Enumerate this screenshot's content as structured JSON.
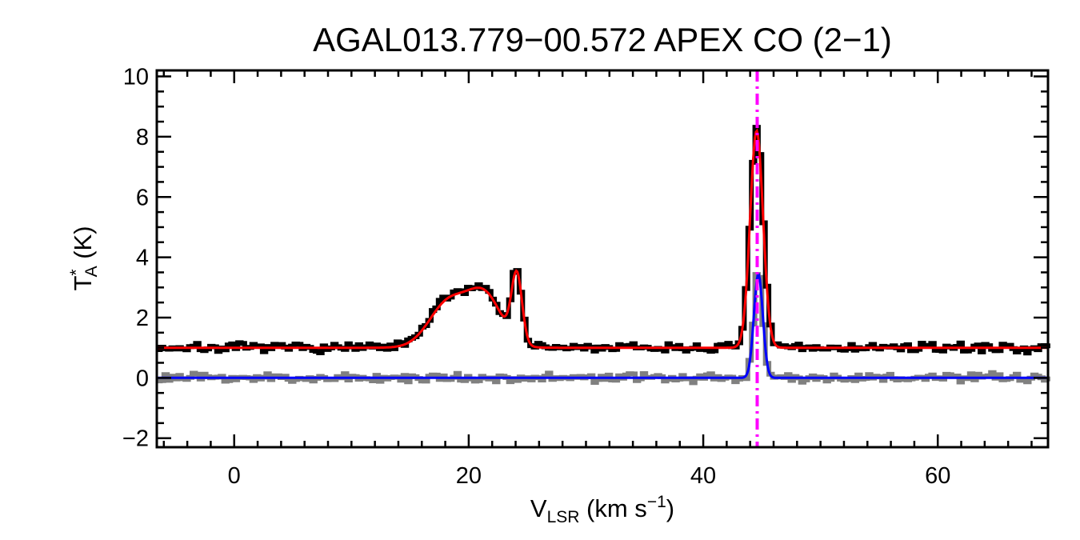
{
  "chart_data": {
    "type": "line",
    "title": "AGAL013.779−00.572  APEX CO (2−1)",
    "xlabel": {
      "main": "V",
      "sub": "LSR",
      "units_pre": " (km s",
      "sup": "−1",
      "units_post": ")"
    },
    "ylabel": {
      "main": "T",
      "sup": "*",
      "sub": "A",
      "units": " (K)"
    },
    "xlim": [
      -6.6,
      69.4
    ],
    "ylim": [
      -2.3,
      10.2
    ],
    "x_ticks": [
      0,
      20,
      40,
      60
    ],
    "x_tick_labels": [
      "0",
      "20",
      "40",
      "60"
    ],
    "y_ticks": [
      -2,
      0,
      2,
      4,
      6,
      8,
      10
    ],
    "y_tick_labels": [
      "−2",
      "0",
      "2",
      "4",
      "6",
      "8",
      "10"
    ],
    "x_minor_step": 2,
    "y_minor_step": 0.5,
    "vline": {
      "x": 44.6,
      "color": "#ff00ff",
      "style": "dash-dot"
    },
    "spectrum": {
      "x_start": -6.6,
      "x_step": 0.3,
      "n": 254,
      "noise_rms": 0.07
    },
    "series": [
      {
        "name": "observed spectrum",
        "color": "#000000",
        "style": "histogram",
        "noise_seed": 7,
        "baseline": 1.0,
        "components": [
          {
            "center": 18.3,
            "amplitude": 1.55,
            "sigma": 1.65
          },
          {
            "center": 21.4,
            "amplitude": 1.7,
            "sigma": 1.45
          },
          {
            "center": 24.1,
            "amplitude": 2.3,
            "sigma": 0.45
          },
          {
            "center": 44.55,
            "amplitude": 7.3,
            "sigma": 0.55
          }
        ]
      },
      {
        "name": "fit",
        "color": "#ff0000",
        "style": "line",
        "baseline": 1.0,
        "components": [
          {
            "center": 18.3,
            "amplitude": 1.5,
            "sigma": 1.65
          },
          {
            "center": 21.4,
            "amplitude": 1.65,
            "sigma": 1.45
          },
          {
            "center": 24.1,
            "amplitude": 2.25,
            "sigma": 0.45
          },
          {
            "center": 44.55,
            "amplitude": 7.2,
            "sigma": 0.55
          }
        ]
      },
      {
        "name": "residual spectrum",
        "color": "#808080",
        "style": "histogram",
        "noise_seed": 23,
        "baseline": 0.0,
        "components": [
          {
            "center": 44.7,
            "amplitude": 3.7,
            "sigma": 0.38
          }
        ]
      },
      {
        "name": "residual fit",
        "color": "#0000ff",
        "style": "line",
        "baseline": 0.0,
        "components": [
          {
            "center": 44.7,
            "amplitude": 3.45,
            "sigma": 0.38
          }
        ]
      }
    ]
  }
}
